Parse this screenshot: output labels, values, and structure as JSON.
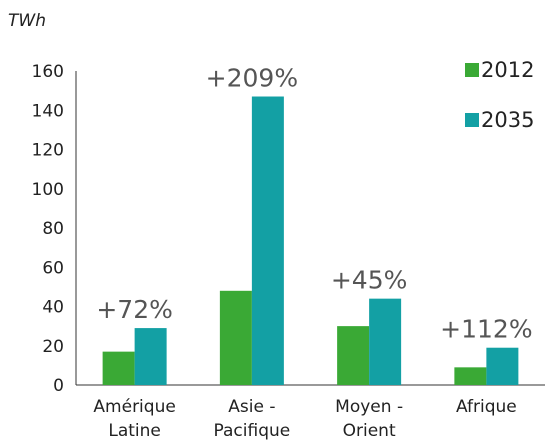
{
  "chart_data": {
    "type": "bar",
    "unit_label": "TWh",
    "categories": [
      [
        "Amérique",
        "Latine"
      ],
      [
        "Asie -",
        "Pacifique"
      ],
      [
        "Moyen -",
        "Orient"
      ],
      [
        "Afrique"
      ]
    ],
    "series": [
      {
        "name": "2012",
        "values": [
          17,
          48,
          30,
          9
        ],
        "color": "#3aa935"
      },
      {
        "name": "2035",
        "values": [
          29,
          147,
          44,
          19
        ],
        "color": "#13a0a4"
      }
    ],
    "annotations": [
      "+72%",
      "+209%",
      "+45%",
      "+112%"
    ],
    "ylim": [
      0,
      160
    ],
    "yticks": [
      "0",
      "20",
      "40",
      "60",
      "80",
      "100",
      "120",
      "140",
      "160"
    ],
    "grid": false,
    "legend_position": "top-right"
  }
}
